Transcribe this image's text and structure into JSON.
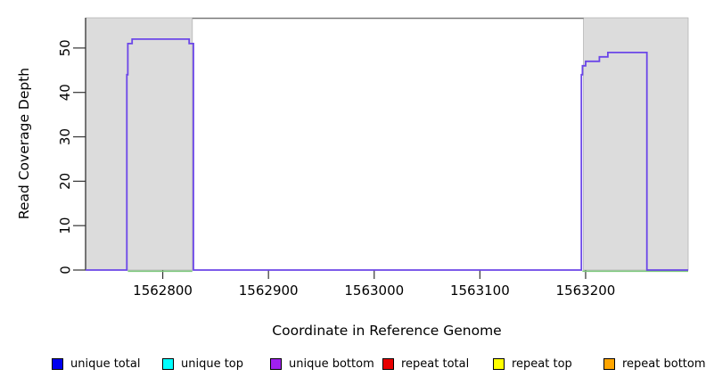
{
  "chart_data": {
    "type": "line",
    "title": "",
    "xlabel": "Coordinate in Reference Genome",
    "ylabel": "Read Coverage Depth",
    "xlim": [
      1562727,
      1563297
    ],
    "ylim": [
      0,
      56.8
    ],
    "x_ticks": [
      1562800,
      1562900,
      1563000,
      1563100,
      1563200
    ],
    "y_ticks": [
      0,
      10,
      20,
      30,
      40,
      50
    ],
    "grid": false,
    "legend_position": "bottom",
    "colors": {
      "shaded_region": "#dcdcdc",
      "shaded_region_border": "#b4b4b4",
      "axis": "#333333",
      "top_border": "#787878",
      "coverage_line": "#6b46e8",
      "feature_line": "#7cc87c"
    },
    "shaded_regions": [
      {
        "name": "left-shaded-region",
        "x0": 1562727,
        "x1": 1562828
      },
      {
        "name": "right-shaded-region",
        "x0": 1563198,
        "x1": 1563297
      }
    ],
    "top_border_segment": {
      "x0": 1562828,
      "x1": 1563198
    },
    "feature_segments": [
      {
        "name": "left-feature-segment",
        "x0": 1562767,
        "x1": 1562828,
        "y": 0
      },
      {
        "name": "right-feature-segment",
        "x0": 1563197,
        "x1": 1563297,
        "y": 0
      }
    ],
    "series": [
      {
        "name": "unique bottom",
        "color": "#6b46e8",
        "points": [
          [
            1562727,
            0
          ],
          [
            1562766,
            0
          ],
          [
            1562766,
            44
          ],
          [
            1562767,
            44
          ],
          [
            1562767,
            51
          ],
          [
            1562771,
            51
          ],
          [
            1562771,
            52
          ],
          [
            1562825,
            52
          ],
          [
            1562825,
            51
          ],
          [
            1562829,
            51
          ],
          [
            1562829,
            0
          ],
          [
            1563196,
            0
          ],
          [
            1563196,
            44
          ],
          [
            1563197,
            44
          ],
          [
            1563197,
            46
          ],
          [
            1563200,
            46
          ],
          [
            1563200,
            47
          ],
          [
            1563213,
            47
          ],
          [
            1563213,
            48
          ],
          [
            1563221,
            48
          ],
          [
            1563221,
            49
          ],
          [
            1563258,
            49
          ],
          [
            1563258,
            0
          ],
          [
            1563297,
            0
          ]
        ]
      }
    ],
    "legend": [
      {
        "label": "unique total",
        "color": "#0000ee"
      },
      {
        "label": "unique top",
        "color": "#00ffff"
      },
      {
        "label": "unique bottom",
        "color": "#a020f0"
      },
      {
        "label": "repeat total",
        "color": "#e80000"
      },
      {
        "label": "repeat top",
        "color": "#ffff00"
      },
      {
        "label": "repeat bottom",
        "color": "#ffa500"
      }
    ]
  }
}
